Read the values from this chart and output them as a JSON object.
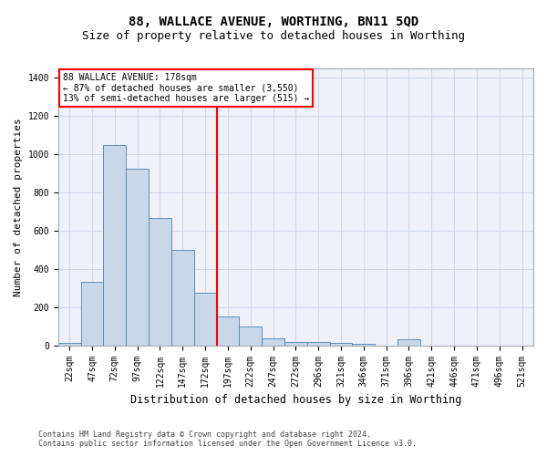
{
  "title": "88, WALLACE AVENUE, WORTHING, BN11 5QD",
  "subtitle": "Size of property relative to detached houses in Worthing",
  "xlabel": "Distribution of detached houses by size in Worthing",
  "ylabel": "Number of detached properties",
  "categories": [
    "22sqm",
    "47sqm",
    "72sqm",
    "97sqm",
    "122sqm",
    "147sqm",
    "172sqm",
    "197sqm",
    "222sqm",
    "247sqm",
    "272sqm",
    "296sqm",
    "321sqm",
    "346sqm",
    "371sqm",
    "396sqm",
    "421sqm",
    "446sqm",
    "471sqm",
    "496sqm",
    "521sqm"
  ],
  "values": [
    15,
    335,
    1050,
    925,
    665,
    500,
    275,
    150,
    100,
    35,
    18,
    18,
    15,
    10,
    0,
    30,
    0,
    0,
    0,
    0,
    0
  ],
  "bar_color": "#c8d8e8",
  "bar_edge_color": "#5b8db8",
  "vline_x_index": 6,
  "vline_color": "red",
  "annotation_text": "88 WALLACE AVENUE: 178sqm\n← 87% of detached houses are smaller (3,550)\n13% of semi-detached houses are larger (515) →",
  "annotation_box_color": "white",
  "annotation_box_edge": "red",
  "ylim": [
    0,
    1450
  ],
  "yticks": [
    0,
    200,
    400,
    600,
    800,
    1000,
    1200,
    1400
  ],
  "grid_color": "#d0d8e8",
  "bg_color": "#eef2f8",
  "footer1": "Contains HM Land Registry data © Crown copyright and database right 2024.",
  "footer2": "Contains public sector information licensed under the Open Government Licence v3.0.",
  "title_fontsize": 10,
  "subtitle_fontsize": 9,
  "tick_fontsize": 7,
  "ylabel_fontsize": 8,
  "xlabel_fontsize": 8.5
}
